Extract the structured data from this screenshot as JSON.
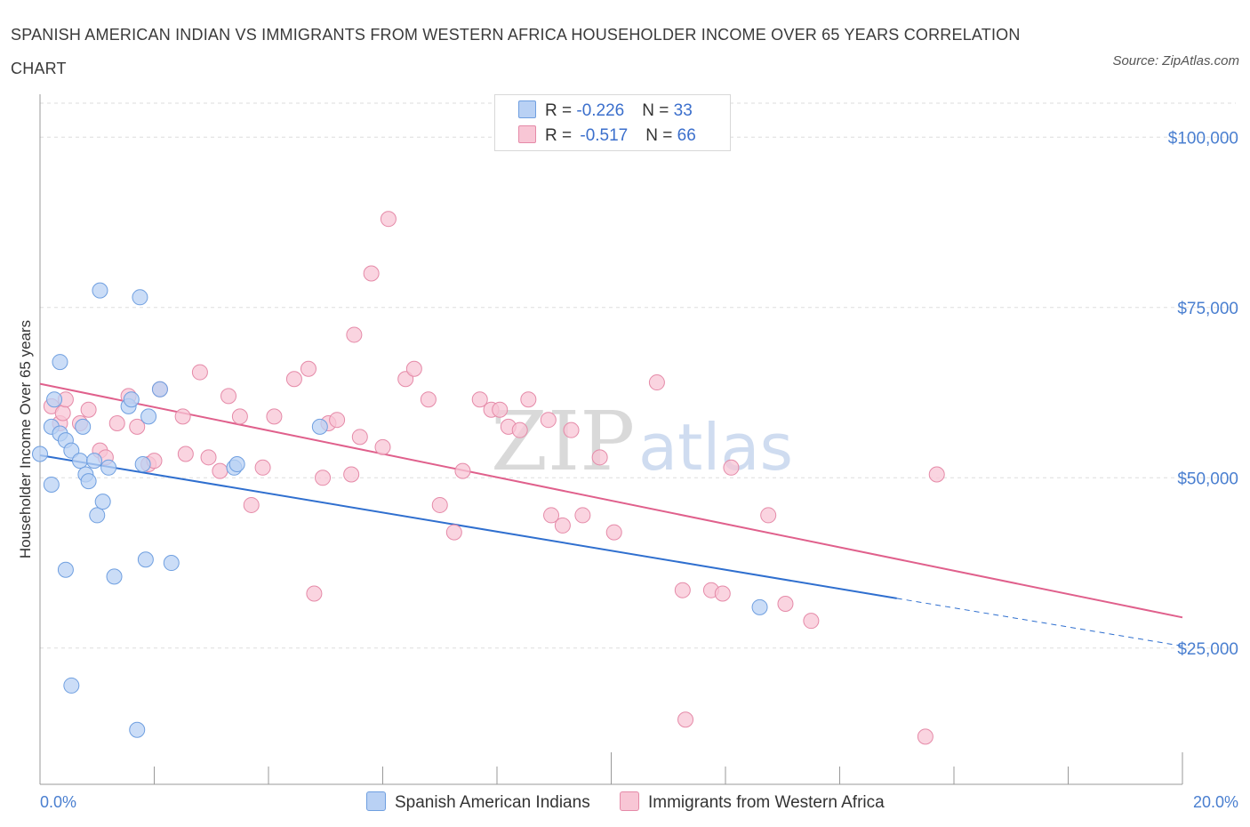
{
  "title": "SPANISH AMERICAN INDIAN VS IMMIGRANTS FROM WESTERN AFRICA HOUSEHOLDER INCOME OVER 65 YEARS CORRELATION CHART",
  "source": "Source: ZipAtlas.com",
  "watermark": {
    "zip": "ZIP",
    "atlas": "atlas"
  },
  "colors": {
    "blue_fill": "#b9d1f4",
    "blue_stroke": "#6f9fe0",
    "blue_line": "#2f6fcf",
    "pink_fill": "#f8c6d5",
    "pink_stroke": "#e58aa8",
    "pink_line": "#e0608c",
    "axis_label": "#4a7fd0",
    "grid": "#dddddd"
  },
  "legend_top": [
    {
      "r_label": "R = ",
      "r_value": "-0.226",
      "n_label": "N = ",
      "n_value": "33"
    },
    {
      "r_label": "R = ",
      "r_value": "-0.517",
      "n_label": "N = ",
      "n_value": "66"
    }
  ],
  "chart_data": {
    "type": "scatter",
    "title": "SPANISH AMERICAN INDIAN VS IMMIGRANTS FROM WESTERN AFRICA HOUSEHOLDER INCOME OVER 65 YEARS CORRELATION CHART",
    "xlabel": "",
    "ylabel": "Householder Income Over 65 years",
    "xlim": [
      0,
      20
    ],
    "ylim": [
      5000,
      105000
    ],
    "x_tick_labels": [
      "0.0%",
      "20.0%"
    ],
    "y_ticks": [
      25000,
      50000,
      75000,
      100000
    ],
    "y_tick_labels": [
      "$25,000",
      "$50,000",
      "$75,000",
      "$100,000"
    ],
    "grid": true,
    "legend_position": "top-center",
    "series": [
      {
        "name": "Spanish American Indians",
        "r": -0.226,
        "n": 33,
        "points": [
          [
            0.0,
            53500
          ],
          [
            0.2,
            57500
          ],
          [
            0.25,
            61500
          ],
          [
            0.2,
            49000
          ],
          [
            0.35,
            67000
          ],
          [
            0.35,
            56500
          ],
          [
            0.45,
            55500
          ],
          [
            0.55,
            54000
          ],
          [
            0.7,
            52500
          ],
          [
            0.75,
            57500
          ],
          [
            0.8,
            50500
          ],
          [
            0.85,
            49500
          ],
          [
            0.95,
            52500
          ],
          [
            1.0,
            44500
          ],
          [
            1.05,
            77500
          ],
          [
            1.1,
            46500
          ],
          [
            1.2,
            51500
          ],
          [
            1.55,
            60500
          ],
          [
            1.6,
            61500
          ],
          [
            1.75,
            76500
          ],
          [
            1.8,
            52000
          ],
          [
            1.9,
            59000
          ],
          [
            2.1,
            63000
          ],
          [
            3.4,
            51500
          ],
          [
            3.45,
            52000
          ],
          [
            4.9,
            57500
          ],
          [
            0.45,
            36500
          ],
          [
            1.3,
            35500
          ],
          [
            1.85,
            38000
          ],
          [
            2.3,
            37500
          ],
          [
            0.55,
            19500
          ],
          [
            1.7,
            13000
          ],
          [
            12.6,
            31000
          ]
        ],
        "trend": {
          "x0": 0.0,
          "y0": 53300,
          "x1": 15.0,
          "y1": 32300,
          "dash_to_x": 20.0,
          "dash_to_y": 25300
        }
      },
      {
        "name": "Immigrants from Western Africa",
        "r": -0.517,
        "n": 66,
        "points": [
          [
            0.2,
            60500
          ],
          [
            0.35,
            58000
          ],
          [
            0.4,
            59500
          ],
          [
            0.45,
            61500
          ],
          [
            0.7,
            58000
          ],
          [
            0.85,
            60000
          ],
          [
            1.05,
            54000
          ],
          [
            1.15,
            53000
          ],
          [
            1.35,
            58000
          ],
          [
            1.55,
            62000
          ],
          [
            1.7,
            57500
          ],
          [
            1.9,
            52000
          ],
          [
            2.0,
            52500
          ],
          [
            2.1,
            63000
          ],
          [
            2.5,
            59000
          ],
          [
            2.55,
            53500
          ],
          [
            2.8,
            65500
          ],
          [
            2.95,
            53000
          ],
          [
            3.15,
            51000
          ],
          [
            3.3,
            62000
          ],
          [
            3.5,
            59000
          ],
          [
            3.7,
            46000
          ],
          [
            3.9,
            51500
          ],
          [
            4.1,
            59000
          ],
          [
            4.45,
            64500
          ],
          [
            4.7,
            66000
          ],
          [
            4.95,
            50000
          ],
          [
            5.05,
            58000
          ],
          [
            5.2,
            58500
          ],
          [
            5.45,
            50500
          ],
          [
            5.5,
            71000
          ],
          [
            5.6,
            56000
          ],
          [
            5.8,
            80000
          ],
          [
            6.0,
            54500
          ],
          [
            6.1,
            88000
          ],
          [
            6.4,
            64500
          ],
          [
            6.55,
            66000
          ],
          [
            6.8,
            61500
          ],
          [
            7.0,
            46000
          ],
          [
            7.25,
            42000
          ],
          [
            7.4,
            51000
          ],
          [
            7.7,
            61500
          ],
          [
            7.9,
            60000
          ],
          [
            8.05,
            60000
          ],
          [
            8.2,
            57500
          ],
          [
            8.4,
            57000
          ],
          [
            8.55,
            61500
          ],
          [
            8.9,
            58500
          ],
          [
            8.95,
            44500
          ],
          [
            9.15,
            43000
          ],
          [
            9.3,
            57000
          ],
          [
            9.5,
            44500
          ],
          [
            9.8,
            53000
          ],
          [
            10.05,
            42000
          ],
          [
            10.8,
            64000
          ],
          [
            11.25,
            33500
          ],
          [
            11.75,
            33500
          ],
          [
            11.95,
            33000
          ],
          [
            12.1,
            51500
          ],
          [
            12.75,
            44500
          ],
          [
            13.05,
            31500
          ],
          [
            13.5,
            29000
          ],
          [
            11.3,
            14500
          ],
          [
            15.7,
            50500
          ],
          [
            15.5,
            12000
          ],
          [
            4.8,
            33000
          ]
        ],
        "trend": {
          "x0": 0.0,
          "y0": 63800,
          "x1": 20.0,
          "y1": 29500
        }
      }
    ]
  }
}
